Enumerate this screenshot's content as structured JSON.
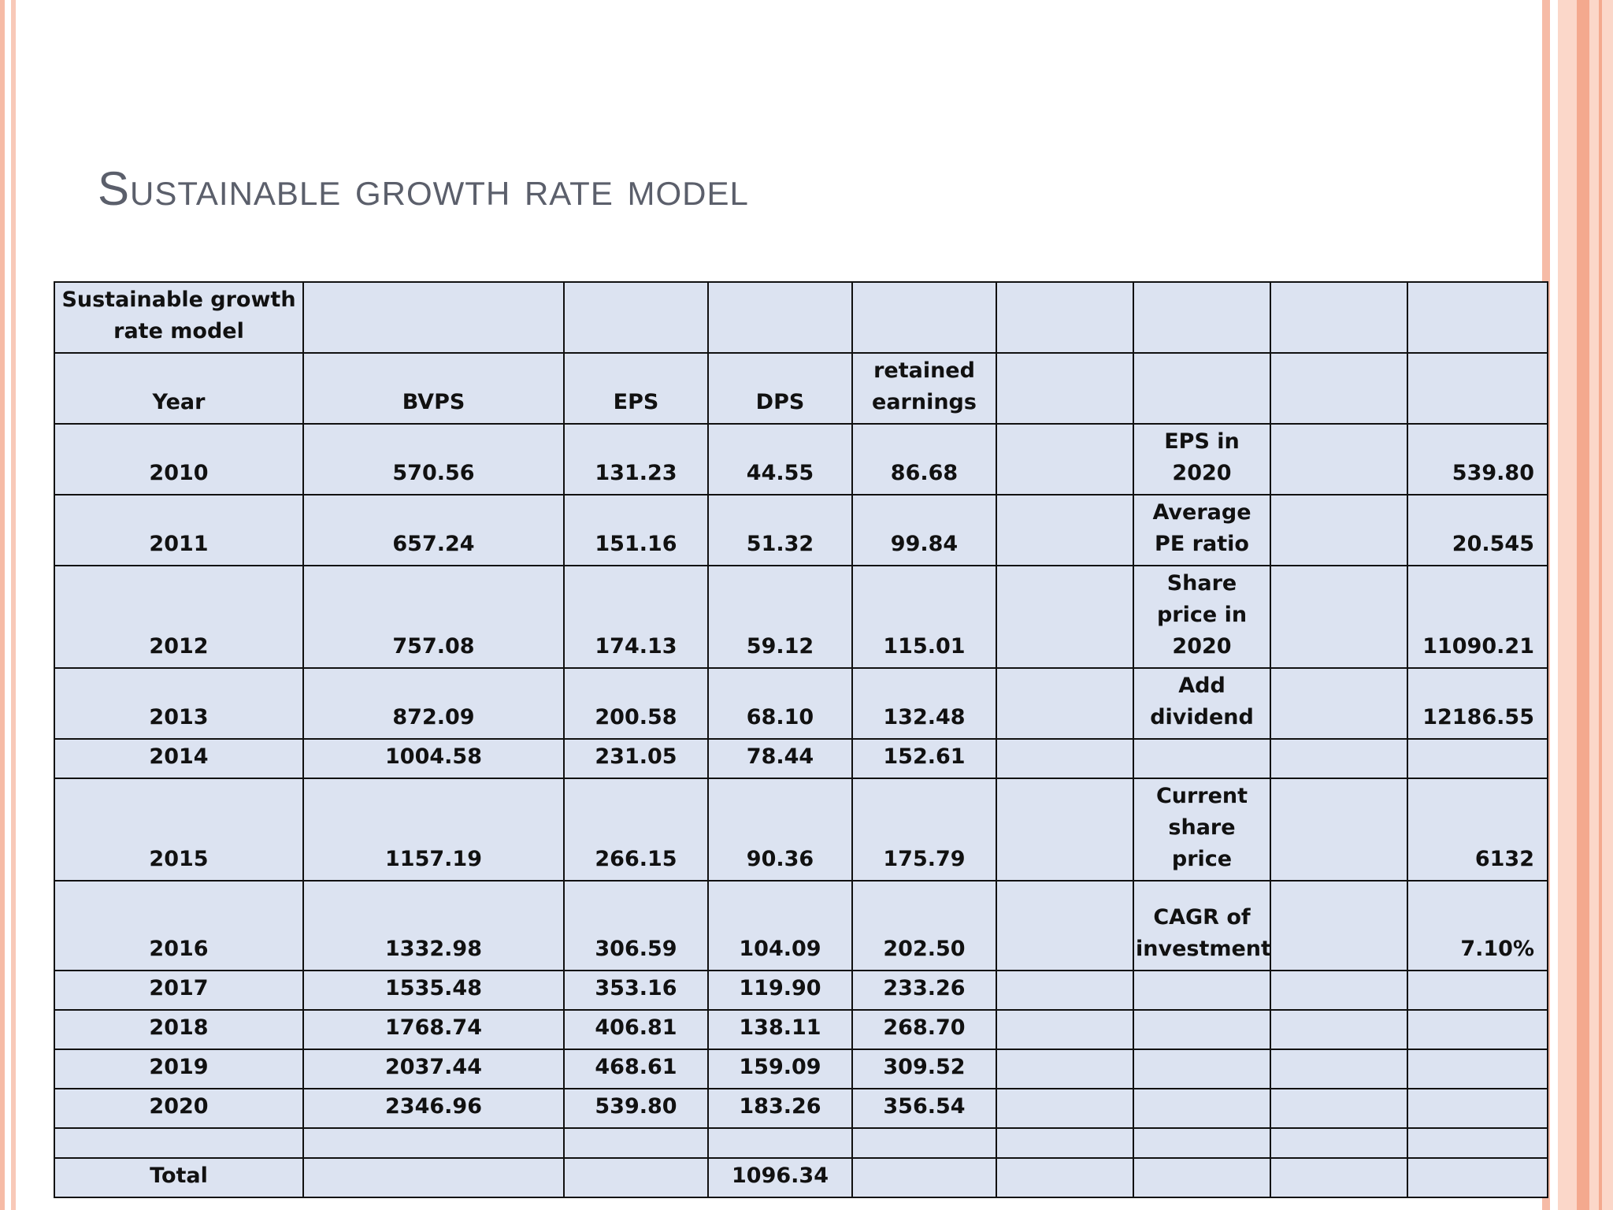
{
  "slide": {
    "title": "Sustainable growth rate model"
  },
  "table": {
    "header_title": "Sustainable growth rate model",
    "columns": [
      "Year",
      "BVPS",
      "EPS",
      "DPS",
      "retained earnings"
    ],
    "rows": [
      {
        "year": "2010",
        "bvps": "570.56",
        "eps": "131.23",
        "dps": "44.55",
        "retained": "86.68",
        "label": "EPS in 2020",
        "value": "539.80"
      },
      {
        "year": "2011",
        "bvps": "657.24",
        "eps": "151.16",
        "dps": "51.32",
        "retained": "99.84",
        "label": "Average PE ratio",
        "value": "20.545"
      },
      {
        "year": "2012",
        "bvps": "757.08",
        "eps": "174.13",
        "dps": "59.12",
        "retained": "115.01",
        "label": "Share price in 2020",
        "value": "11090.21"
      },
      {
        "year": "2013",
        "bvps": "872.09",
        "eps": "200.58",
        "dps": "68.10",
        "retained": "132.48",
        "label": "Add dividend",
        "value": "12186.55"
      },
      {
        "year": "2014",
        "bvps": "1004.58",
        "eps": "231.05",
        "dps": "78.44",
        "retained": "152.61",
        "label": "",
        "value": ""
      },
      {
        "year": "2015",
        "bvps": "1157.19",
        "eps": "266.15",
        "dps": "90.36",
        "retained": "175.79",
        "label": "Current share price",
        "value": "6132"
      },
      {
        "year": "2016",
        "bvps": "1332.98",
        "eps": "306.59",
        "dps": "104.09",
        "retained": "202.50",
        "label": "CAGR of investment",
        "value": "7.10%"
      },
      {
        "year": "2017",
        "bvps": "1535.48",
        "eps": "353.16",
        "dps": "119.90",
        "retained": "233.26",
        "label": "",
        "value": ""
      },
      {
        "year": "2018",
        "bvps": "1768.74",
        "eps": "406.81",
        "dps": "138.11",
        "retained": "268.70",
        "label": "",
        "value": ""
      },
      {
        "year": "2019",
        "bvps": "2037.44",
        "eps": "468.61",
        "dps": "159.09",
        "retained": "309.52",
        "label": "",
        "value": ""
      },
      {
        "year": "2020",
        "bvps": "2346.96",
        "eps": "539.80",
        "dps": "183.26",
        "retained": "356.54",
        "label": "",
        "value": ""
      }
    ],
    "total": {
      "label": "Total",
      "dps": "1096.34"
    }
  },
  "colors": {
    "title": "#5b5f6b",
    "cell_fill": "#dce3f1",
    "border": "#111111",
    "accent_bar": "#f6bba6"
  }
}
